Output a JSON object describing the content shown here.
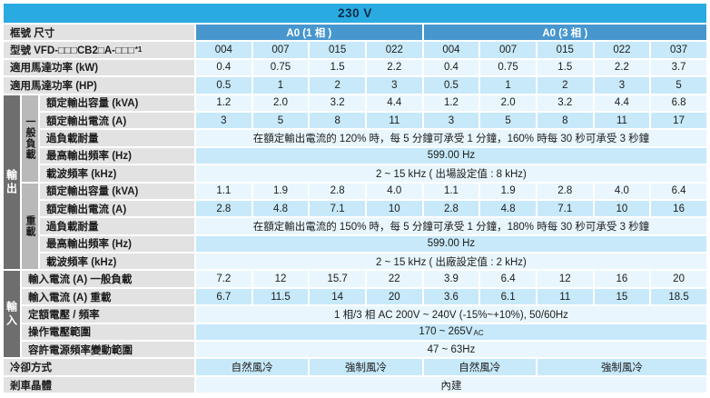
{
  "header": {
    "voltage": "230 V"
  },
  "frame_row": {
    "label": "框號 尺寸",
    "phase1": "A0 (1 相 )",
    "phase3": "A0 (3 相 )"
  },
  "model_row": {
    "label": "型號 VFD-□□□CB2□A-□□□",
    "sup": "*1",
    "values": [
      "004",
      "007",
      "015",
      "022",
      "004",
      "007",
      "015",
      "022",
      "037"
    ]
  },
  "motor_kw_row": {
    "label": "適用馬達功率 (kW)",
    "values": [
      "0.4",
      "0.75",
      "1.5",
      "2.2",
      "0.4",
      "0.75",
      "1.5",
      "2.2",
      "3.7"
    ]
  },
  "motor_hp_row": {
    "label": "適用馬達功率 (HP)",
    "values": [
      "0.5",
      "1",
      "2",
      "3",
      "0.5",
      "1",
      "2",
      "3",
      "5"
    ]
  },
  "output": {
    "group_label": "輸出",
    "normal": {
      "group_label": "一般負載",
      "capacity": {
        "label": "額定輸出容量 (kVA)",
        "values": [
          "1.2",
          "2.0",
          "3.2",
          "4.4",
          "1.2",
          "2.0",
          "3.2",
          "4.4",
          "6.8"
        ]
      },
      "current": {
        "label": "額定輸出電流 (A)",
        "values": [
          "3",
          "5",
          "8",
          "11",
          "3",
          "5",
          "8",
          "11",
          "17"
        ]
      },
      "overload": {
        "label": "過負載耐量",
        "value": "在額定輸出電流的 120% 時，每 5 分鐘可承受 1 分鐘，160% 時每 30 秒可承受 3 秒鐘"
      },
      "max_freq": {
        "label": "最高輸出頻率 (Hz)",
        "value": "599.00 Hz"
      },
      "carrier": {
        "label": "載波頻率 (kHz)",
        "value": "2 ~ 15 kHz ( 出場設定值 : 8 kHz)"
      }
    },
    "heavy": {
      "group_label": "重載",
      "capacity": {
        "label": "額定輸出容量 (kVA)",
        "values": [
          "1.1",
          "1.9",
          "2.8",
          "4.0",
          "1.1",
          "1.9",
          "2.8",
          "4.0",
          "6.4"
        ]
      },
      "current": {
        "label": "額定輸出電流 (A)",
        "values": [
          "2.8",
          "4.8",
          "7.1",
          "10",
          "2.8",
          "4.8",
          "7.1",
          "10",
          "16"
        ]
      },
      "overload": {
        "label": "過負載耐量",
        "value": "在額定輸出電流的 150% 時，每 5 分鐘可承受 1 分鐘，180% 時每 30 秒可承受 3 秒鐘"
      },
      "max_freq": {
        "label": "最高輸出頻率 (Hz)",
        "value": "599.00 Hz"
      },
      "carrier": {
        "label": "載波頻率 (kHz)",
        "value": "2 ~ 15 kHz ( 出廠設定值 : 2 kHz)"
      }
    }
  },
  "input": {
    "group_label": "輸入",
    "current_normal": {
      "label": "輸入電流 (A) 一般負載",
      "values": [
        "7.2",
        "12",
        "15.7",
        "22",
        "3.9",
        "6.4",
        "12",
        "16",
        "20"
      ]
    },
    "current_heavy": {
      "label": "輸入電流 (A) 重載",
      "values": [
        "6.7",
        "11.5",
        "14",
        "20",
        "3.6",
        "6.1",
        "11",
        "15",
        "18.5"
      ]
    },
    "rated_voltage": {
      "label": "定額電壓 / 頻率",
      "value": "1 相/3 相  AC 200V ~ 240V (-15%~+10%), 50/60Hz"
    },
    "operating_voltage": {
      "label": "操作電壓範圍",
      "value": "170 ~ 265V",
      "sub": "AC"
    },
    "freq_tolerance": {
      "label": "容許電源頻率變動範圍",
      "value": "47 ~ 63Hz"
    }
  },
  "cooling_row": {
    "label": "冷卻方式",
    "values": [
      "自然風冷",
      "強制風冷",
      "自然風冷",
      "強制風冷"
    ]
  },
  "brake_row": {
    "label": "剎車晶體",
    "value": "內建"
  },
  "colors": {
    "voltage_bar": "#29abe2",
    "phase_header": "#4796ce",
    "row_dark": "#c7e9f9",
    "row_light": "#e9f6fd",
    "label_bg": "#e2e2e2",
    "subgroup_bg": "#b9b9b9",
    "group_bg": "#6e6e6e"
  }
}
